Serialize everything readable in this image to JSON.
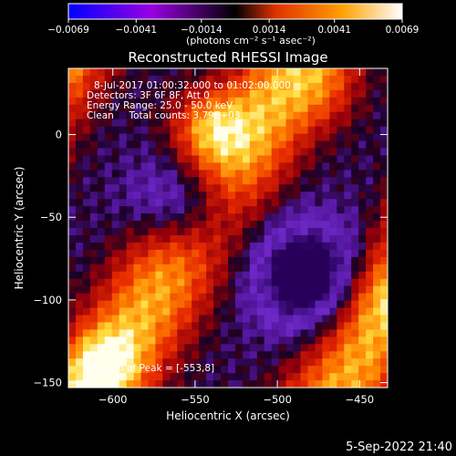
{
  "chart_data": {
    "type": "heatmap",
    "title": "Reconstructed RHESSI Image",
    "xlabel": "Heliocentric X (arcsec)",
    "ylabel": "Heliocentric Y (arcsec)",
    "xlim": [
      -627,
      -433
    ],
    "ylim": [
      -153,
      40
    ],
    "x_ticks": [
      -600,
      -550,
      -500,
      -450
    ],
    "y_ticks": [
      0,
      -50,
      -100,
      -150
    ],
    "grid": false,
    "colorbar": {
      "label": "(photons cm⁻² s⁻¹ asec⁻²)",
      "ticks": [
        -0.0069,
        -0.0041,
        -0.0014,
        0.0014,
        0.0041,
        0.0069
      ],
      "tick_labels": [
        "−0.0069",
        "−0.0041",
        "−0.0014",
        "0.0014",
        "0.0041",
        "0.0069"
      ],
      "colormap": [
        "#0000ff",
        "#9a00e0",
        "#e03000",
        "#ff8000",
        "#ffe000",
        "#ffffff"
      ]
    },
    "info_lines": [
      "8-Jul-2017 01:00:32.000 to 01:02:00.000",
      "Detectors: 3F 6F 8F, Att 0",
      "Energy Range: 25.0 - 50.0 keV",
      "Clean     Total counts: 3.79E+03"
    ],
    "peak_label": "Position of Peak = [-553,8]",
    "timestamp": "5-Sep-2022 21:40"
  }
}
